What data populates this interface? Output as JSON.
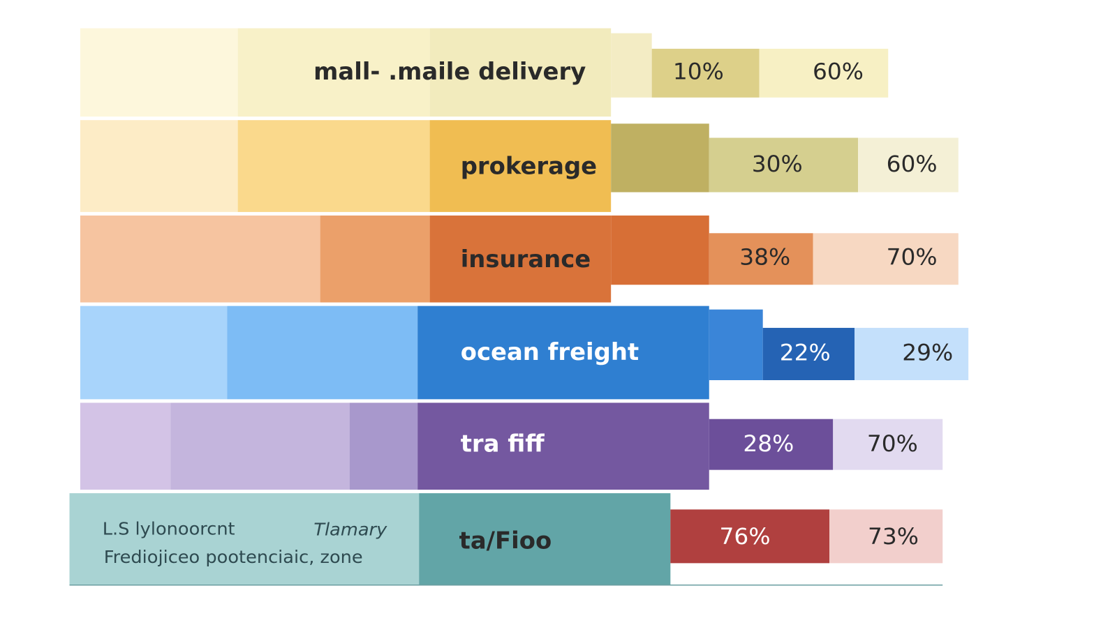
{
  "rows": [
    {
      "label": "mall- .maile delivery",
      "values": [
        "10%",
        "60%"
      ]
    },
    {
      "label": "prokerage",
      "values": [
        "30%",
        "60%"
      ]
    },
    {
      "label": "insurance",
      "values": [
        "38%",
        "70%"
      ]
    },
    {
      "label": "ocean freight",
      "values": [
        "22%",
        "29%"
      ]
    },
    {
      "label": "tra fiff",
      "values": [
        "28%",
        "70%"
      ]
    },
    {
      "label": "ta/Fioo",
      "values": [
        "76%",
        "73%"
      ],
      "notes": [
        "L.S lylonoorcnt",
        "Tlamary",
        "Frediojiceo pootenciaic, zone"
      ]
    }
  ]
}
